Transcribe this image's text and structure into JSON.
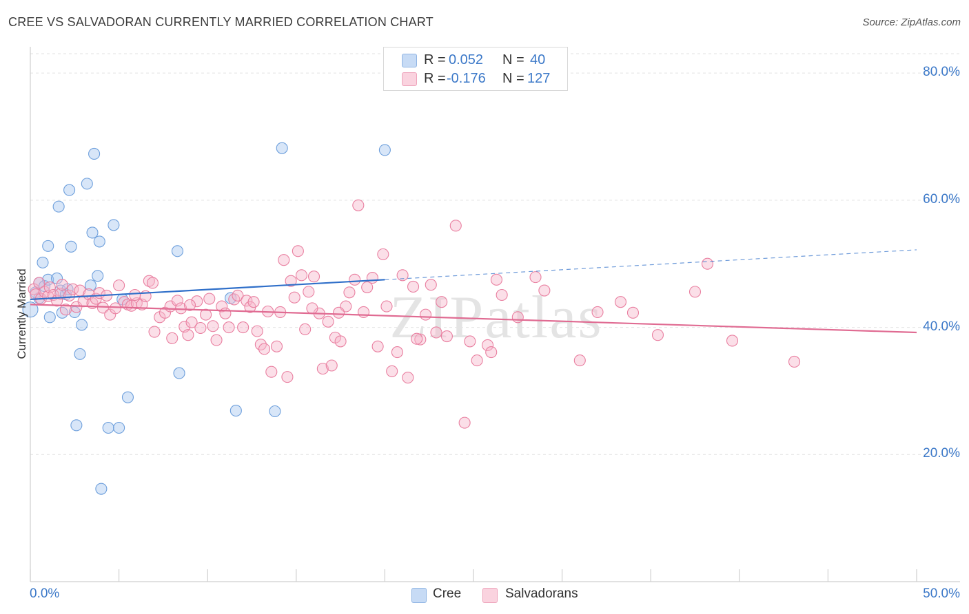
{
  "title": "CREE VS SALVADORAN CURRENTLY MARRIED CORRELATION CHART",
  "source": "Source: ZipAtlas.com",
  "watermark": "ZIPatlas",
  "legend_top": [
    {
      "r_label": "R = ",
      "r_value": "0.052",
      "n_label": "N = ",
      "n_value": "40",
      "color": "#a9c8f0"
    },
    {
      "r_label": "R = ",
      "r_value": "-0.176",
      "n_label": "N = ",
      "n_value": "127",
      "color": "#f7b8cb"
    }
  ],
  "legend_bottom": [
    {
      "label": "Cree",
      "color": "#a9c8f0"
    },
    {
      "label": "Salvadorans",
      "color": "#f7b8cb"
    }
  ],
  "chart_data": {
    "type": "scatter",
    "title": "CREE VS SALVADORAN CURRENTLY MARRIED CORRELATION CHART",
    "xlabel": "",
    "ylabel": "Currently Married",
    "xlim": [
      0,
      50
    ],
    "ylim": [
      0,
      85
    ],
    "x_tick_labels": [
      "0.0%",
      "50.0%"
    ],
    "y_ticks": [
      20,
      40,
      60,
      80
    ],
    "y_tick_labels": [
      "20.0%",
      "40.0%",
      "60.0%",
      "80.0%"
    ],
    "grid": true,
    "legend_position": "top-center",
    "series": [
      {
        "name": "Cree",
        "color": "#a9c8f0",
        "stroke": "#6d9fdc",
        "trend": {
          "x": [
            0,
            20
          ],
          "y": [
            44.4,
            47.5
          ],
          "extended_to": {
            "x": 50,
            "y": 52.2
          },
          "color": "#2f6fc9"
        },
        "points": [
          [
            0.0,
            42.8
          ],
          [
            0.5,
            44.6
          ],
          [
            0.5,
            47.0
          ],
          [
            0.8,
            46.5
          ],
          [
            1.0,
            47.5
          ],
          [
            0.7,
            50.2
          ],
          [
            1.0,
            52.8
          ],
          [
            1.1,
            41.6
          ],
          [
            1.5,
            47.7
          ],
          [
            1.7,
            45.8
          ],
          [
            1.6,
            59.0
          ],
          [
            1.8,
            42.3
          ],
          [
            2.0,
            45.2
          ],
          [
            2.2,
            61.6
          ],
          [
            2.3,
            52.7
          ],
          [
            2.5,
            42.4
          ],
          [
            2.6,
            24.6
          ],
          [
            2.8,
            35.8
          ],
          [
            2.9,
            40.4
          ],
          [
            3.2,
            62.6
          ],
          [
            3.4,
            46.6
          ],
          [
            3.5,
            54.9
          ],
          [
            3.6,
            67.3
          ],
          [
            3.8,
            48.1
          ],
          [
            3.9,
            53.5
          ],
          [
            4.0,
            14.6
          ],
          [
            4.4,
            24.2
          ],
          [
            4.7,
            56.1
          ],
          [
            5.0,
            24.2
          ],
          [
            5.2,
            44.4
          ],
          [
            5.5,
            29.0
          ],
          [
            8.3,
            52.0
          ],
          [
            8.4,
            32.8
          ],
          [
            11.3,
            44.6
          ],
          [
            11.6,
            26.9
          ],
          [
            13.8,
            26.8
          ],
          [
            14.2,
            68.2
          ],
          [
            20.0,
            67.9
          ],
          [
            0.3,
            45.5
          ],
          [
            2.1,
            46.0
          ]
        ]
      },
      {
        "name": "Salvadorans",
        "color": "#f7b8cb",
        "stroke": "#e97fa0",
        "trend": {
          "x": [
            0,
            50
          ],
          "y": [
            43.6,
            39.2
          ],
          "color": "#e06b92"
        },
        "points": [
          [
            0.2,
            46.0
          ],
          [
            0.3,
            45.2
          ],
          [
            0.5,
            47.0
          ],
          [
            0.6,
            44.5
          ],
          [
            0.8,
            45.6
          ],
          [
            1.0,
            44.9
          ],
          [
            1.1,
            46.3
          ],
          [
            1.3,
            45.1
          ],
          [
            1.5,
            44.2
          ],
          [
            1.7,
            45.3
          ],
          [
            1.8,
            46.7
          ],
          [
            2.0,
            42.8
          ],
          [
            2.2,
            45.0
          ],
          [
            2.4,
            46.0
          ],
          [
            2.6,
            43.2
          ],
          [
            2.8,
            45.8
          ],
          [
            3.0,
            44.1
          ],
          [
            3.3,
            45.2
          ],
          [
            3.5,
            43.8
          ],
          [
            3.7,
            44.5
          ],
          [
            3.9,
            45.4
          ],
          [
            4.1,
            43.1
          ],
          [
            4.3,
            45.0
          ],
          [
            4.5,
            42.0
          ],
          [
            4.8,
            43.0
          ],
          [
            5.0,
            46.6
          ],
          [
            5.3,
            44.0
          ],
          [
            5.5,
            43.6
          ],
          [
            5.7,
            43.4
          ],
          [
            6.0,
            43.8
          ],
          [
            6.3,
            43.6
          ],
          [
            6.5,
            44.9
          ],
          [
            6.7,
            47.3
          ],
          [
            6.9,
            47.0
          ],
          [
            7.0,
            39.3
          ],
          [
            7.3,
            41.6
          ],
          [
            7.6,
            42.3
          ],
          [
            7.9,
            43.3
          ],
          [
            8.0,
            38.3
          ],
          [
            8.3,
            44.2
          ],
          [
            8.5,
            43.0
          ],
          [
            8.7,
            40.1
          ],
          [
            8.9,
            38.8
          ],
          [
            9.1,
            40.8
          ],
          [
            9.4,
            44.1
          ],
          [
            9.6,
            39.9
          ],
          [
            9.9,
            42.0
          ],
          [
            10.1,
            44.5
          ],
          [
            10.3,
            40.2
          ],
          [
            10.5,
            38.0
          ],
          [
            10.8,
            43.3
          ],
          [
            11.0,
            42.2
          ],
          [
            11.2,
            40.0
          ],
          [
            11.5,
            44.4
          ],
          [
            11.7,
            45.0
          ],
          [
            12.0,
            40.0
          ],
          [
            12.2,
            44.2
          ],
          [
            12.4,
            43.2
          ],
          [
            12.6,
            44.0
          ],
          [
            12.8,
            39.4
          ],
          [
            13.0,
            37.3
          ],
          [
            13.2,
            36.6
          ],
          [
            13.4,
            42.5
          ],
          [
            13.6,
            33.0
          ],
          [
            13.9,
            37.0
          ],
          [
            14.1,
            42.4
          ],
          [
            14.3,
            50.6
          ],
          [
            14.5,
            32.2
          ],
          [
            14.7,
            47.3
          ],
          [
            14.9,
            44.7
          ],
          [
            15.1,
            52.0
          ],
          [
            15.3,
            48.2
          ],
          [
            15.5,
            39.7
          ],
          [
            15.7,
            45.6
          ],
          [
            16.0,
            48.0
          ],
          [
            16.3,
            42.2
          ],
          [
            16.5,
            33.5
          ],
          [
            16.8,
            40.9
          ],
          [
            17.0,
            34.0
          ],
          [
            17.2,
            38.4
          ],
          [
            17.5,
            37.8
          ],
          [
            17.8,
            43.3
          ],
          [
            18.0,
            45.5
          ],
          [
            18.3,
            47.5
          ],
          [
            18.5,
            59.2
          ],
          [
            18.8,
            42.4
          ],
          [
            19.0,
            46.3
          ],
          [
            19.3,
            47.8
          ],
          [
            19.6,
            37.0
          ],
          [
            19.9,
            51.5
          ],
          [
            20.1,
            43.3
          ],
          [
            20.4,
            33.1
          ],
          [
            20.7,
            36.1
          ],
          [
            21.0,
            48.2
          ],
          [
            21.3,
            32.1
          ],
          [
            21.6,
            46.4
          ],
          [
            22.0,
            38.1
          ],
          [
            22.3,
            42.0
          ],
          [
            22.6,
            46.7
          ],
          [
            22.9,
            39.2
          ],
          [
            23.2,
            44.0
          ],
          [
            23.5,
            38.6
          ],
          [
            24.0,
            56.0
          ],
          [
            24.5,
            25.0
          ],
          [
            24.8,
            37.8
          ],
          [
            25.2,
            34.8
          ],
          [
            25.8,
            37.2
          ],
          [
            26.3,
            47.5
          ],
          [
            26.6,
            45.1
          ],
          [
            27.5,
            41.6
          ],
          [
            28.5,
            47.9
          ],
          [
            29.0,
            45.8
          ],
          [
            31.0,
            34.8
          ],
          [
            32.0,
            42.4
          ],
          [
            33.3,
            44.0
          ],
          [
            34.0,
            42.3
          ],
          [
            35.4,
            38.8
          ],
          [
            37.5,
            45.6
          ],
          [
            38.2,
            50.0
          ],
          [
            39.6,
            37.9
          ],
          [
            43.1,
            34.6
          ],
          [
            21.8,
            38.2
          ],
          [
            17.4,
            42.3
          ],
          [
            5.9,
            45.1
          ],
          [
            9.0,
            43.5
          ],
          [
            15.9,
            43.0
          ],
          [
            26.0,
            36.1
          ]
        ]
      }
    ]
  }
}
